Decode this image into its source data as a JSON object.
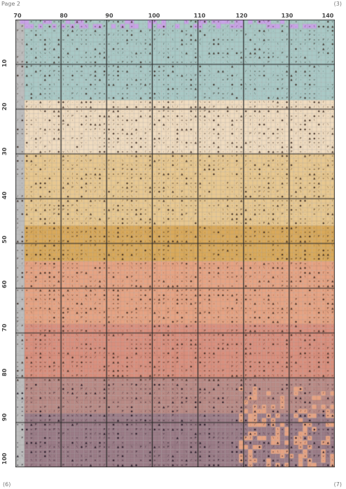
{
  "page": {
    "header_left": "Page 2",
    "header_right": "(3)",
    "footer_left": "(6)",
    "footer_right": "(7)"
  },
  "column_numbers": [
    "70",
    "80",
    "90",
    "100",
    "110",
    "120",
    "130",
    "140"
  ],
  "row_numbers": [
    "10",
    "20",
    "30",
    "40",
    "50",
    "60",
    "70",
    "80",
    "90",
    "100"
  ],
  "palette": {
    "sky_blue": "#a9c9c6",
    "sky_purple": "#c9a3e8",
    "cream": "#f0dcc0",
    "light_gold": "#e8c890",
    "gold": "#d9a95a",
    "peach": "#e6a383",
    "salmon": "#d98f7d",
    "rose_brown": "#b98a85",
    "mauve_dark": "#9a7b86",
    "grid_line": "#2a2a2a",
    "left_margin_gray": "#bdbdbd"
  }
}
